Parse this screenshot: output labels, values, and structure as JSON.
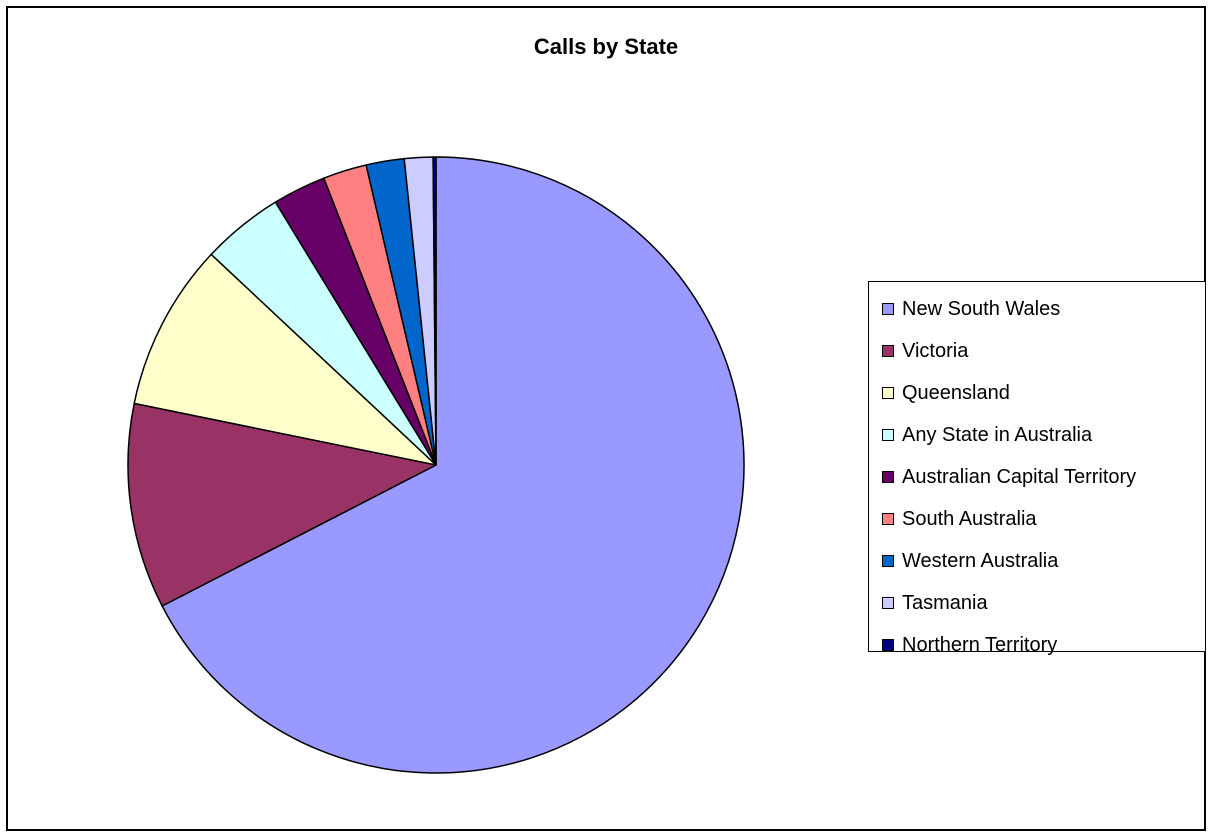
{
  "chart_data": {
    "type": "pie",
    "title": "Calls by State",
    "legend_position": "right",
    "start_angle": "top, clockwise",
    "slices": [
      {
        "label": "New South Wales",
        "value": 67.6,
        "color": "#9999FF"
      },
      {
        "label": "Victoria",
        "value": 10.8,
        "color": "#993366"
      },
      {
        "label": "Queensland",
        "value": 8.8,
        "color": "#FFFFCC"
      },
      {
        "label": "Any State in Australia",
        "value": 4.3,
        "color": "#CCFFFF"
      },
      {
        "label": "Australian Capital Territory",
        "value": 2.8,
        "color": "#660066"
      },
      {
        "label": "South Australia",
        "value": 2.3,
        "color": "#FF8080"
      },
      {
        "label": "Western Australia",
        "value": 2.0,
        "color": "#0066CC"
      },
      {
        "label": "Tasmania",
        "value": 1.5,
        "color": "#CCCCFF"
      },
      {
        "label": "Northern Territory",
        "value": 0.15,
        "color": "#000080"
      }
    ]
  }
}
